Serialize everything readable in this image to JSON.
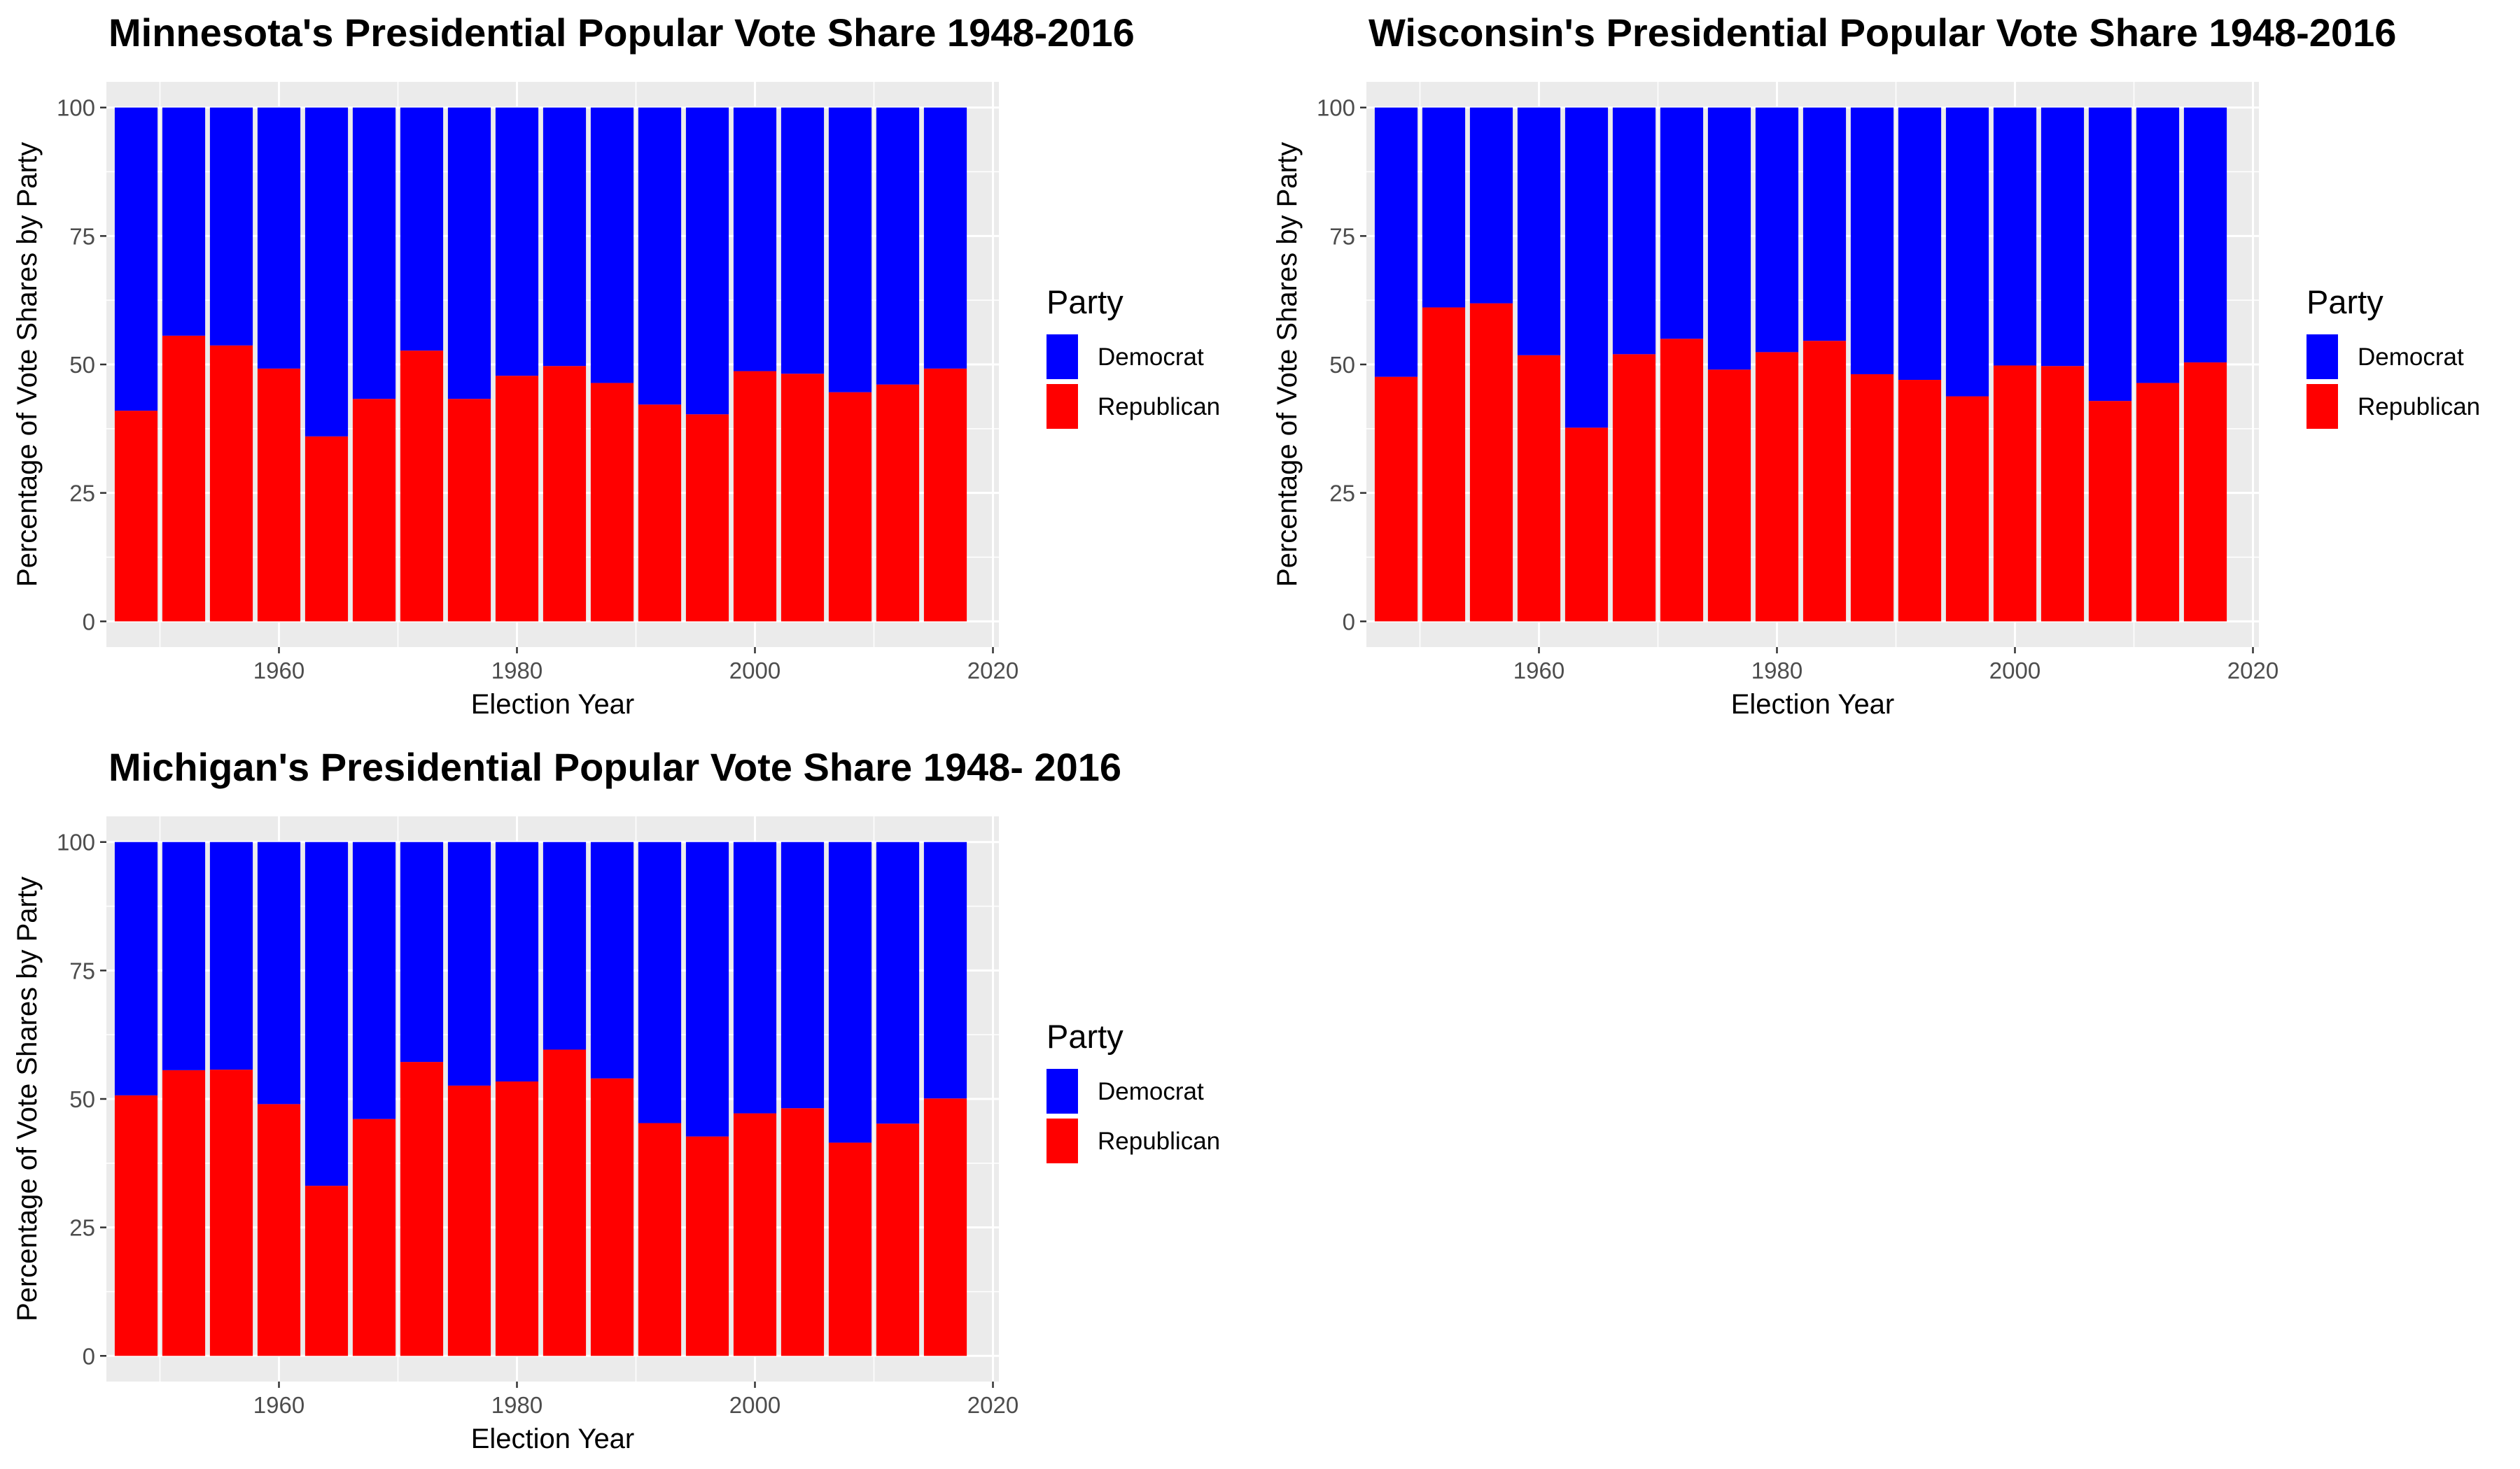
{
  "chart_data": [
    {
      "type": "bar",
      "stacked": true,
      "title": "Minnesota's Presidential Popular Vote Share 1948-2016",
      "xlabel": "Election Year",
      "ylabel": "Percentage of Vote Shares by Party",
      "x": [
        1948,
        1952,
        1956,
        1960,
        1964,
        1968,
        1972,
        1976,
        1980,
        1984,
        1988,
        1992,
        1996,
        2000,
        2004,
        2008,
        2012,
        2016
      ],
      "series": [
        {
          "name": "Republican",
          "color": "#ff0000",
          "values": [
            41,
            55.6,
            53.7,
            49.2,
            36,
            43.3,
            52.7,
            43.3,
            47.8,
            49.7,
            46.4,
            42.2,
            40.3,
            48.7,
            48.2,
            44.6,
            46.1,
            49.2
          ]
        },
        {
          "name": "Democrat",
          "color": "#0000ff",
          "values": [
            59,
            44.4,
            46.3,
            50.8,
            64,
            56.7,
            47.3,
            56.7,
            52.2,
            50.3,
            53.6,
            57.8,
            59.7,
            51.3,
            51.8,
            55.4,
            53.9,
            50.8
          ]
        }
      ],
      "xlim": [
        1945.5,
        2020.5
      ],
      "xticks": [
        1960,
        1980,
        2000,
        2020
      ],
      "ylim": [
        -5,
        105
      ],
      "yticks": [
        0,
        25,
        50,
        75,
        100
      ],
      "legend": {
        "title": "Party",
        "position": "right",
        "entries": [
          "Democrat",
          "Republican"
        ]
      },
      "grid": true
    },
    {
      "type": "bar",
      "stacked": true,
      "title": "Wisconsin's Presidential Popular Vote Share 1948-2016",
      "xlabel": "Election Year",
      "ylabel": "Percentage of Vote Shares by Party",
      "x": [
        1948,
        1952,
        1956,
        1960,
        1964,
        1968,
        1972,
        1976,
        1980,
        1984,
        1988,
        1992,
        1996,
        2000,
        2004,
        2008,
        2012,
        2016
      ],
      "series": [
        {
          "name": "Republican",
          "color": "#ff0000",
          "values": [
            47.6,
            61.1,
            61.9,
            51.8,
            37.7,
            52,
            55,
            49,
            52.4,
            54.6,
            48.1,
            47,
            43.8,
            49.8,
            49.7,
            42.9,
            46.4,
            50.4
          ]
        },
        {
          "name": "Democrat",
          "color": "#0000ff",
          "values": [
            52.4,
            38.9,
            38.1,
            48.2,
            62.3,
            48,
            45,
            51,
            47.6,
            45.4,
            51.9,
            53,
            56.2,
            50.2,
            50.3,
            57.1,
            53.6,
            49.6
          ]
        }
      ],
      "xlim": [
        1945.5,
        2020.5
      ],
      "xticks": [
        1960,
        1980,
        2000,
        2020
      ],
      "ylim": [
        -5,
        105
      ],
      "yticks": [
        0,
        25,
        50,
        75,
        100
      ],
      "legend": {
        "title": "Party",
        "position": "right",
        "entries": [
          "Democrat",
          "Republican"
        ]
      },
      "grid": true
    },
    {
      "type": "bar",
      "stacked": true,
      "title": "Michigan's Presidential Popular Vote Share 1948- 2016",
      "xlabel": "Election Year",
      "ylabel": "Percentage of Vote Shares by Party",
      "x": [
        1948,
        1952,
        1956,
        1960,
        1964,
        1968,
        1972,
        1976,
        1980,
        1984,
        1988,
        1992,
        1996,
        2000,
        2004,
        2008,
        2012,
        2016
      ],
      "series": [
        {
          "name": "Republican",
          "color": "#ff0000",
          "values": [
            50.7,
            55.6,
            55.7,
            49,
            33.1,
            46.1,
            57.2,
            52.6,
            53.4,
            59.6,
            54,
            45.3,
            42.7,
            47.2,
            48.2,
            41.5,
            45.2,
            50.1
          ]
        },
        {
          "name": "Democrat",
          "color": "#0000ff",
          "values": [
            49.3,
            44.4,
            44.3,
            51,
            66.9,
            53.9,
            42.8,
            47.4,
            46.6,
            40.4,
            46,
            54.7,
            57.3,
            52.8,
            51.8,
            58.5,
            54.8,
            49.9
          ]
        }
      ],
      "xlim": [
        1945.5,
        2020.5
      ],
      "xticks": [
        1960,
        1980,
        2000,
        2020
      ],
      "ylim": [
        -5,
        105
      ],
      "yticks": [
        0,
        25,
        50,
        75,
        100
      ],
      "legend": {
        "title": "Party",
        "position": "right",
        "entries": [
          "Democrat",
          "Republican"
        ]
      },
      "grid": true
    }
  ]
}
